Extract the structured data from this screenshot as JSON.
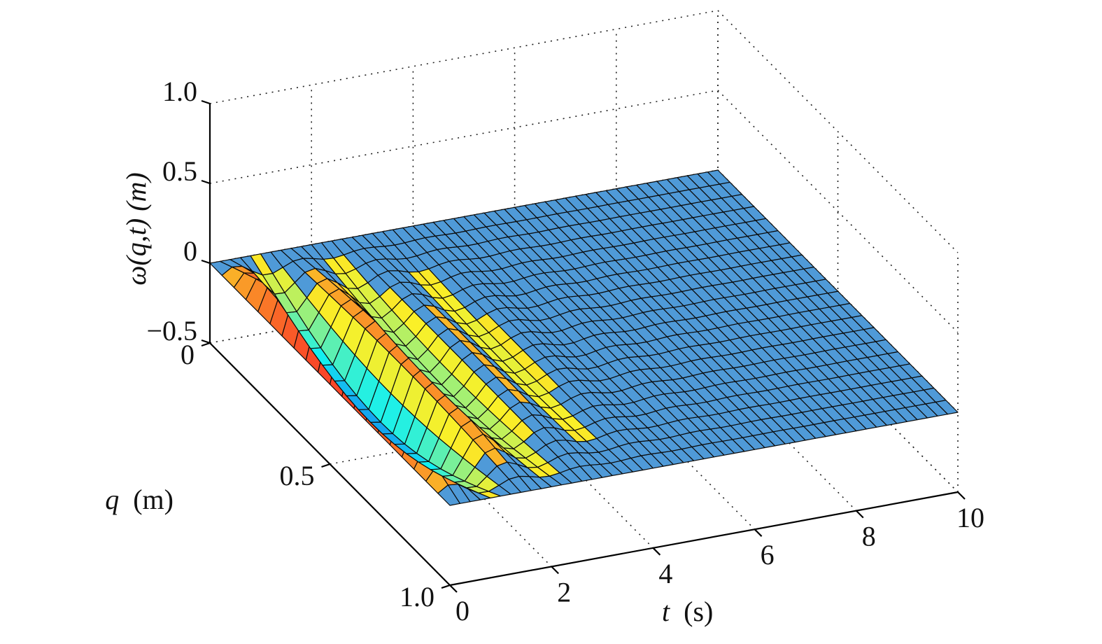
{
  "chart_data": {
    "type": "surface",
    "zlabel": "ω(q,t) (m)",
    "ylabel_var": "q",
    "ylabel_unit": "(m)",
    "xlabel_var": "t",
    "xlabel_unit": "(s)",
    "x_range": [
      0,
      10
    ],
    "y_range": [
      0,
      1.0
    ],
    "z_range": [
      -0.5,
      1.0
    ],
    "x_ticks": [
      "0",
      "2",
      "4",
      "6",
      "8",
      "10"
    ],
    "y_ticks": [
      "0",
      "0.5",
      "1.0"
    ],
    "z_ticks": [
      "−0.5",
      "0",
      "0.5",
      "1.0"
    ],
    "grid": true,
    "colormap": "jet",
    "surface_description_values": {
      "initial_condition_z_at_t0": 0,
      "approx_min_z": -0.5,
      "approx_max_z": 0.25,
      "steady_state_z": 0.0
    }
  }
}
